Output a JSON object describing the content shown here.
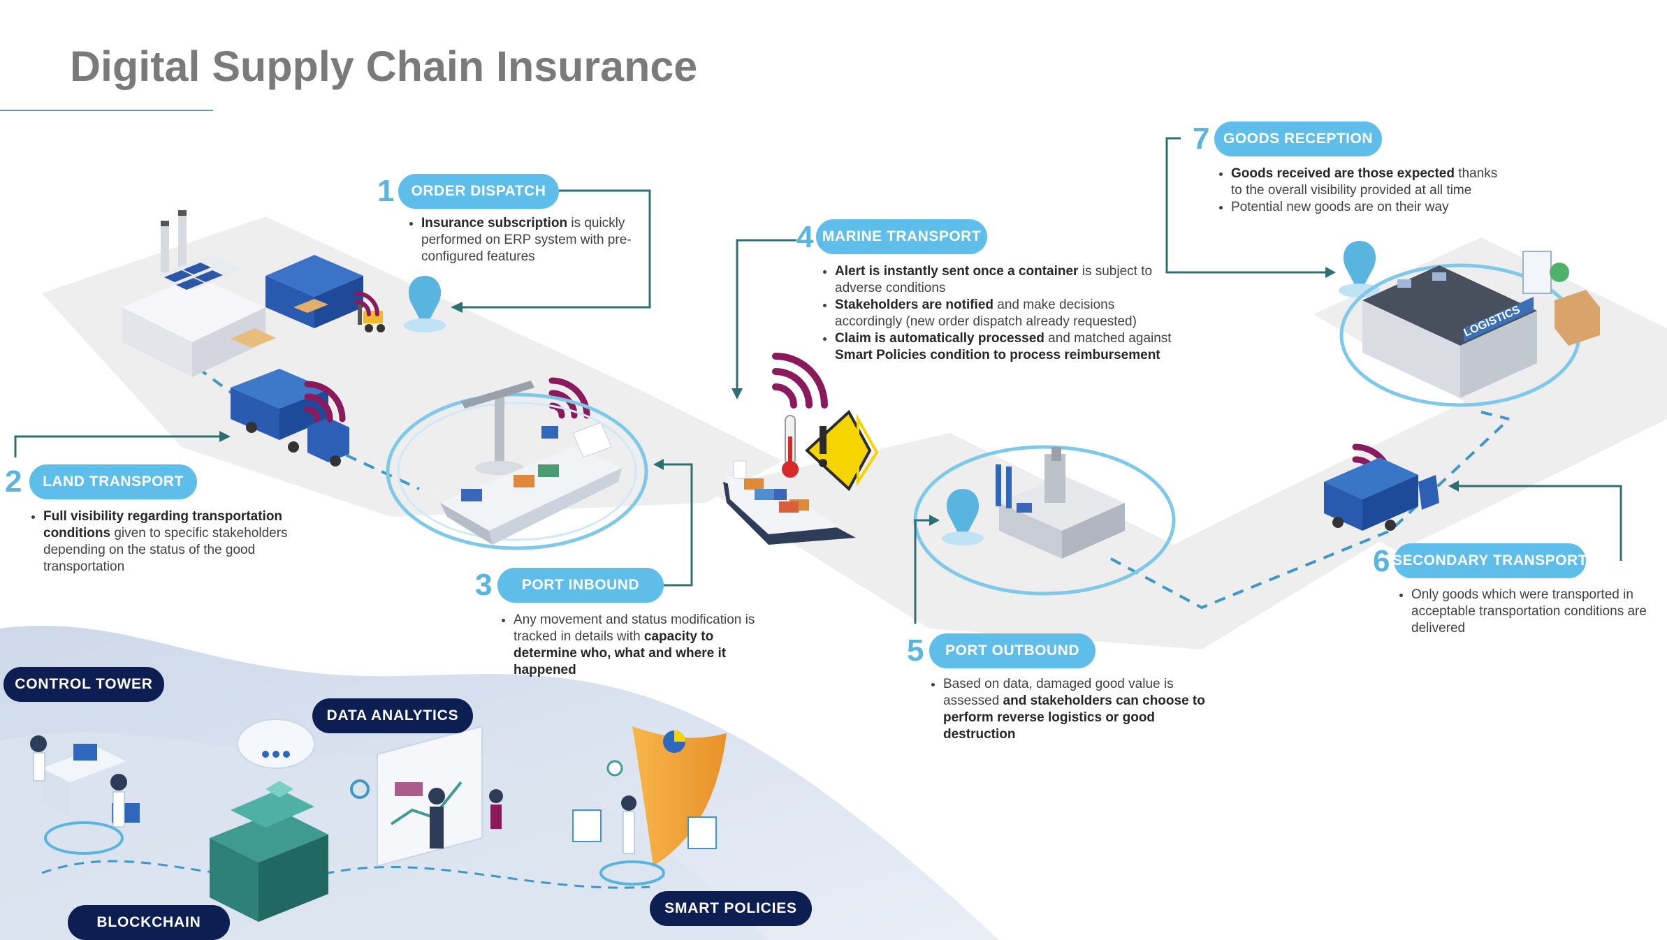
{
  "title": "Digital Supply Chain Insurance",
  "colors": {
    "step_pill": "#5ebde9",
    "step_number": "#59b4e0",
    "connector": "#2f6f73",
    "tech_pill": "#0c1e52",
    "wifi": "#8a1a5c",
    "title": "#7a7a7a"
  },
  "steps": [
    {
      "number": "1",
      "label": "ORDER DISPATCH",
      "bullets": [
        {
          "bold": "Insurance subscription",
          "text": " is quickly performed on ERP system with pre-configured features"
        }
      ]
    },
    {
      "number": "2",
      "label": "LAND TRANSPORT",
      "bullets": [
        {
          "bold": "Full visibility regarding transportation conditions",
          "text": " given to specific stakeholders depending on the status of the good transportation"
        }
      ]
    },
    {
      "number": "3",
      "label": "PORT INBOUND",
      "bullets": [
        {
          "text": "Any movement and status modification is tracked in details with ",
          "bold": "capacity to determine who, what and where it happened"
        }
      ]
    },
    {
      "number": "4",
      "label": "MARINE TRANSPORT",
      "bullets": [
        {
          "bold": "Alert is instantly sent once a container",
          "text": " is subject to adverse conditions"
        },
        {
          "bold": "Stakeholders are notified",
          "text": " and make decisions accordingly (new order dispatch already requested)"
        },
        {
          "bold": "Claim is automatically processed",
          "text": " and matched against ",
          "bold2": "Smart Policies condition to process reimbursement"
        }
      ]
    },
    {
      "number": "5",
      "label": "PORT OUTBOUND",
      "bullets": [
        {
          "text": "Based on data, damaged good value is assessed ",
          "bold": "and stakeholders can choose to perform reverse logistics or good destruction"
        }
      ]
    },
    {
      "number": "6",
      "label": "SECONDARY TRANSPORT",
      "bullets": [
        {
          "text": "Only goods which were transported in acceptable transportation conditions are delivered"
        }
      ]
    },
    {
      "number": "7",
      "label": "GOODS RECEPTION",
      "bullets": [
        {
          "bold": "Goods received are those expected",
          "text": " thanks to the overall visibility provided at all time"
        },
        {
          "text": "Potential new goods are on their way"
        }
      ]
    }
  ],
  "technologies": [
    {
      "label": "CONTROL TOWER"
    },
    {
      "label": "DATA ANALYTICS"
    },
    {
      "label": "BLOCKCHAIN"
    },
    {
      "label": "SMART POLICIES"
    }
  ],
  "illustration": {
    "logistics_sign": "LOGISTICS",
    "icons": [
      "factory-icon",
      "container-stack-icon",
      "forklift-icon",
      "truck-icon",
      "crane-icon",
      "cargo-ship-icon",
      "thermometer-icon",
      "warning-icon",
      "port-terminal-icon",
      "warehouse-icon",
      "wifi-signal-icon",
      "location-pin-icon",
      "cloud-icon",
      "cube-stack-icon",
      "dashboard-icon",
      "shield-icon"
    ]
  }
}
